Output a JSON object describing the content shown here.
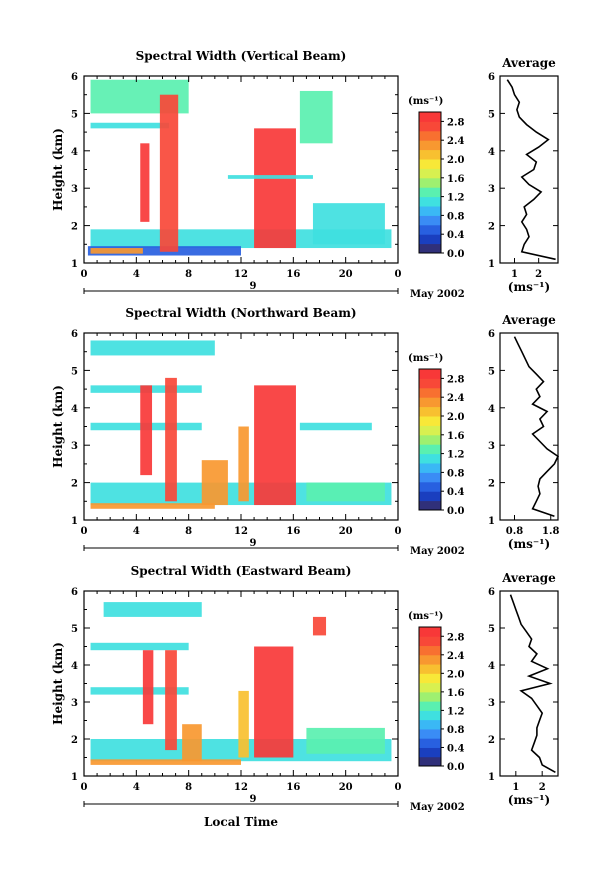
{
  "figure": {
    "xlabel": "Local Time",
    "date_label": "May 2002",
    "day_label": "9"
  },
  "colorbar": {
    "unit": "(ms⁻¹)",
    "min": 0.0,
    "max": 3.0,
    "ticks": [
      "0.0",
      "0.4",
      "0.8",
      "1.2",
      "1.6",
      "2.0",
      "2.4",
      "2.8"
    ],
    "colors": [
      "#30307a",
      "#1a3fbf",
      "#2860e0",
      "#3a8cf5",
      "#3ab8f5",
      "#3fe0e0",
      "#5af0b0",
      "#9ef070",
      "#d8f050",
      "#f8e838",
      "#f8c030",
      "#f89830",
      "#f87030",
      "#f84838",
      "#f83838"
    ]
  },
  "chart_data": [
    {
      "type": "heatmap",
      "title": "Spectral Width (Vertical Beam)",
      "ylabel": "Height (km)",
      "xlabel": "",
      "xlim": [
        0,
        24
      ],
      "ylim": [
        1,
        6
      ],
      "xticks": [
        "0",
        "4",
        "8",
        "12",
        "16",
        "20",
        "0"
      ],
      "yticks": [
        "1",
        "2",
        "3",
        "4",
        "5",
        "6"
      ],
      "regions": [
        {
          "x": [
            0.5,
            23.5
          ],
          "y": [
            1.4,
            1.9
          ],
          "v": 1.0
        },
        {
          "x": [
            0.3,
            12.0
          ],
          "y": [
            1.2,
            1.45
          ],
          "v": 0.5
        },
        {
          "x": [
            0.5,
            4.5
          ],
          "y": [
            1.25,
            1.4
          ],
          "v": 2.4
        },
        {
          "x": [
            0.5,
            6.5
          ],
          "y": [
            4.6,
            4.75
          ],
          "v": 1.2
        },
        {
          "x": [
            0.5,
            8.0
          ],
          "y": [
            5.0,
            5.9
          ],
          "v": 1.4
        },
        {
          "x": [
            4.3,
            5.0
          ],
          "y": [
            2.1,
            4.2
          ],
          "v": 2.9
        },
        {
          "x": [
            5.8,
            7.2
          ],
          "y": [
            1.3,
            5.5
          ],
          "v": 2.7
        },
        {
          "x": [
            13.0,
            16.2
          ],
          "y": [
            1.4,
            4.6
          ],
          "v": 2.9
        },
        {
          "x": [
            11.0,
            17.5
          ],
          "y": [
            3.25,
            3.35
          ],
          "v": 1.0
        },
        {
          "x": [
            16.5,
            19.0
          ],
          "y": [
            4.2,
            5.6
          ],
          "v": 1.4
        },
        {
          "x": [
            17.5,
            23.0
          ],
          "y": [
            1.5,
            2.6
          ],
          "v": 1.2
        }
      ],
      "profile": {
        "title": "Average",
        "xlabel": "(ms⁻¹)",
        "xlim": [
          0.4,
          2.8
        ],
        "xticks": [
          "1",
          "2"
        ],
        "xtick_values": [
          1,
          2
        ],
        "ylim": [
          1,
          6
        ],
        "yticks": [
          "1",
          "2",
          "3",
          "4",
          "5",
          "6"
        ],
        "heights": [
          1.1,
          1.3,
          1.5,
          1.7,
          1.9,
          2.1,
          2.3,
          2.5,
          2.7,
          2.9,
          3.1,
          3.3,
          3.5,
          3.7,
          3.9,
          4.1,
          4.3,
          4.5,
          4.7,
          4.9,
          5.1,
          5.3,
          5.5,
          5.7,
          5.9
        ],
        "values": [
          2.7,
          1.3,
          1.4,
          1.6,
          1.5,
          1.3,
          1.5,
          1.4,
          1.8,
          2.1,
          1.6,
          1.3,
          1.8,
          1.9,
          1.5,
          2.0,
          2.4,
          1.9,
          1.5,
          1.2,
          1.1,
          1.2,
          1.0,
          0.9,
          0.7
        ]
      }
    },
    {
      "type": "heatmap",
      "title": "Spectral Width (Northward Beam)",
      "ylabel": "Height (km)",
      "xlabel": "",
      "xlim": [
        0,
        24
      ],
      "ylim": [
        1,
        6
      ],
      "xticks": [
        "0",
        "4",
        "8",
        "12",
        "16",
        "20",
        "0"
      ],
      "yticks": [
        "1",
        "2",
        "3",
        "4",
        "5",
        "6"
      ],
      "regions": [
        {
          "x": [
            0.5,
            23.5
          ],
          "y": [
            1.4,
            2.0
          ],
          "v": 1.2
        },
        {
          "x": [
            0.5,
            10.0
          ],
          "y": [
            1.3,
            1.45
          ],
          "v": 2.2
        },
        {
          "x": [
            0.5,
            9.0
          ],
          "y": [
            3.4,
            3.6
          ],
          "v": 1.2
        },
        {
          "x": [
            0.5,
            9.0
          ],
          "y": [
            4.4,
            4.6
          ],
          "v": 1.2
        },
        {
          "x": [
            0.5,
            10.0
          ],
          "y": [
            5.4,
            5.8
          ],
          "v": 1.2
        },
        {
          "x": [
            4.3,
            5.2
          ],
          "y": [
            2.2,
            4.6
          ],
          "v": 2.9
        },
        {
          "x": [
            6.2,
            7.1
          ],
          "y": [
            1.5,
            4.8
          ],
          "v": 2.7
        },
        {
          "x": [
            9.0,
            11.0
          ],
          "y": [
            1.4,
            2.6
          ],
          "v": 2.4
        },
        {
          "x": [
            11.8,
            12.6
          ],
          "y": [
            1.5,
            3.5
          ],
          "v": 2.2
        },
        {
          "x": [
            13.0,
            16.2
          ],
          "y": [
            1.4,
            4.6
          ],
          "v": 2.9
        },
        {
          "x": [
            16.5,
            22.0
          ],
          "y": [
            3.4,
            3.6
          ],
          "v": 1.0
        },
        {
          "x": [
            17.0,
            23.0
          ],
          "y": [
            1.5,
            2.0
          ],
          "v": 1.4
        }
      ],
      "profile": {
        "title": "Average",
        "xlabel": "(ms⁻¹)",
        "xlim": [
          0.4,
          2.0
        ],
        "xticks": [
          "0.8",
          "1.8"
        ],
        "xtick_values": [
          0.8,
          1.8
        ],
        "ylim": [
          1,
          6
        ],
        "yticks": [
          "1",
          "2",
          "3",
          "4",
          "5",
          "6"
        ],
        "heights": [
          1.1,
          1.3,
          1.5,
          1.7,
          1.9,
          2.1,
          2.3,
          2.5,
          2.7,
          2.9,
          3.1,
          3.3,
          3.5,
          3.7,
          3.9,
          4.1,
          4.3,
          4.5,
          4.7,
          4.9,
          5.1,
          5.3,
          5.5,
          5.7,
          5.9
        ],
        "values": [
          1.9,
          1.3,
          1.4,
          1.5,
          1.45,
          1.5,
          1.7,
          1.9,
          2.0,
          1.7,
          1.5,
          1.3,
          1.6,
          1.5,
          1.7,
          1.3,
          1.5,
          1.4,
          1.6,
          1.4,
          1.2,
          1.1,
          1.0,
          0.9,
          0.8
        ]
      }
    },
    {
      "type": "heatmap",
      "title": "Spectral Width (Eastward Beam)",
      "ylabel": "Height (km)",
      "xlabel": "Local Time",
      "xlim": [
        0,
        24
      ],
      "ylim": [
        1,
        6
      ],
      "xticks": [
        "0",
        "4",
        "8",
        "12",
        "16",
        "20",
        "0"
      ],
      "yticks": [
        "1",
        "2",
        "3",
        "4",
        "5",
        "6"
      ],
      "regions": [
        {
          "x": [
            0.5,
            23.5
          ],
          "y": [
            1.4,
            2.0
          ],
          "v": 1.2
        },
        {
          "x": [
            0.5,
            12.0
          ],
          "y": [
            1.3,
            1.45
          ],
          "v": 2.4
        },
        {
          "x": [
            0.5,
            8.0
          ],
          "y": [
            3.2,
            3.4
          ],
          "v": 1.0
        },
        {
          "x": [
            0.5,
            8.0
          ],
          "y": [
            4.4,
            4.6
          ],
          "v": 1.0
        },
        {
          "x": [
            1.5,
            9.0
          ],
          "y": [
            5.3,
            5.7
          ],
          "v": 1.2
        },
        {
          "x": [
            4.5,
            5.3
          ],
          "y": [
            2.4,
            4.4
          ],
          "v": 2.9
        },
        {
          "x": [
            6.2,
            7.1
          ],
          "y": [
            1.7,
            4.4
          ],
          "v": 2.7
        },
        {
          "x": [
            7.5,
            9.0
          ],
          "y": [
            1.4,
            2.4
          ],
          "v": 2.4
        },
        {
          "x": [
            11.8,
            12.6
          ],
          "y": [
            1.5,
            3.3
          ],
          "v": 2.0
        },
        {
          "x": [
            13.0,
            16.0
          ],
          "y": [
            1.5,
            4.5
          ],
          "v": 2.9
        },
        {
          "x": [
            17.5,
            18.5
          ],
          "y": [
            4.8,
            5.3
          ],
          "v": 2.6
        },
        {
          "x": [
            17.0,
            23.0
          ],
          "y": [
            1.6,
            2.3
          ],
          "v": 1.4
        }
      ],
      "profile": {
        "title": "Average",
        "xlabel": "(ms⁻¹)",
        "xlim": [
          0.4,
          2.6
        ],
        "xticks": [
          "1",
          "2"
        ],
        "xtick_values": [
          1,
          2
        ],
        "ylim": [
          1,
          6
        ],
        "yticks": [
          "1",
          "2",
          "3",
          "4",
          "5",
          "6"
        ],
        "heights": [
          1.1,
          1.3,
          1.5,
          1.7,
          1.9,
          2.1,
          2.3,
          2.5,
          2.7,
          2.9,
          3.1,
          3.3,
          3.5,
          3.7,
          3.9,
          4.1,
          4.3,
          4.5,
          4.7,
          4.9,
          5.1,
          5.3,
          5.5,
          5.7,
          5.9
        ],
        "values": [
          2.5,
          2.0,
          1.9,
          1.6,
          1.7,
          1.8,
          1.8,
          1.9,
          2.0,
          1.8,
          1.6,
          1.2,
          2.3,
          1.5,
          2.2,
          1.6,
          1.8,
          1.5,
          1.6,
          1.4,
          1.2,
          1.1,
          1.0,
          0.9,
          0.8
        ]
      }
    }
  ]
}
